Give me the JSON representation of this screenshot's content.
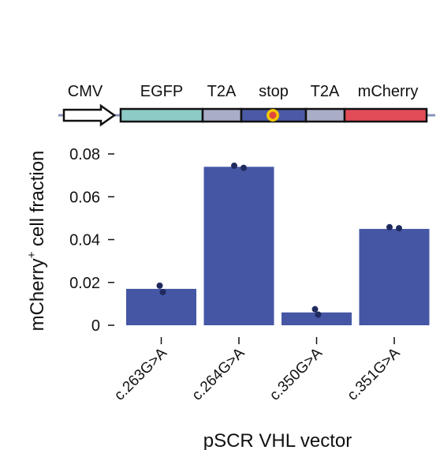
{
  "construct": {
    "segments": [
      {
        "label": "CMV",
        "color": "#ffffff",
        "shape": "arrow"
      },
      {
        "label": "EGFP",
        "color": "#8ccbc6"
      },
      {
        "label": "T2A",
        "color": "#a9adc6"
      },
      {
        "label": "stop",
        "color": "#4b5aa4",
        "marker_color": "#e2463c",
        "marker_ring": "#f3c700"
      },
      {
        "label": "T2A",
        "color": "#a9adc6"
      },
      {
        "label": "mCherry",
        "color": "#e24c59"
      }
    ],
    "line_color": "#8a93b8"
  },
  "chart_data": {
    "type": "bar",
    "categories": [
      "c.263G>A",
      "c.264G>A",
      "c.350G>A",
      "c.351G>A"
    ],
    "values": [
      0.017,
      0.074,
      0.006,
      0.045
    ],
    "points": [
      [
        0.0185,
        0.0155
      ],
      [
        0.0745,
        0.0735
      ],
      [
        0.0075,
        0.005
      ],
      [
        0.0458,
        0.0453
      ]
    ],
    "ylabel_main": "mCherry",
    "ylabel_sup": "+",
    "ylabel_rest": " cell fraction",
    "xlabel": "pSCR VHL vector",
    "yticks": [
      0,
      0.02,
      0.04,
      0.06,
      0.08
    ],
    "ytick_labels": [
      "0",
      "0.02",
      "0.04",
      "0.06",
      "0.08"
    ],
    "ylim": [
      0,
      0.08
    ],
    "bar_color": "#4556a4",
    "point_color": "#1f2a5e"
  }
}
